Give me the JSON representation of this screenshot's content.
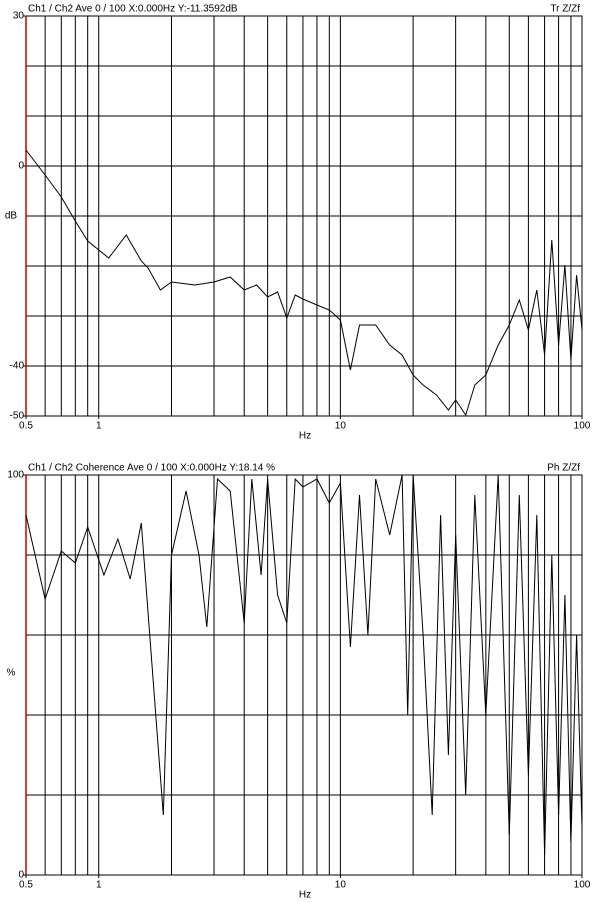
{
  "chart_data": [
    {
      "type": "line",
      "header_left": "Ch1 / Ch2  Ave 0 / 100  X:0.000Hz  Y:-11.3592dB",
      "header_right": "Tr Z/Zf",
      "x_label": "Hz",
      "y_label": "dB",
      "log_x": true,
      "color": "#000000",
      "axis_color": "#cc0000",
      "xlim": [
        0.5,
        100
      ],
      "xticks": [
        0.5,
        1,
        10,
        100
      ],
      "xgrid": [
        0.6,
        0.7,
        0.8,
        0.9,
        1,
        2,
        3,
        4,
        5,
        6,
        7,
        8,
        9,
        10,
        20,
        30,
        40,
        50,
        60,
        70,
        80,
        90
      ],
      "ylim": [
        -50,
        30
      ],
      "yticks": [
        30,
        0,
        -40,
        -50
      ],
      "ygrid": [
        20,
        10,
        0,
        -10,
        -20,
        -30,
        -40
      ],
      "x": [
        0.5,
        0.6,
        0.7,
        0.8,
        0.9,
        1.1,
        1.3,
        1.5,
        1.6,
        1.8,
        2,
        2.5,
        3,
        3.5,
        4,
        4.5,
        5,
        5.5,
        6,
        6.5,
        7,
        8,
        9,
        10,
        11,
        12,
        14,
        16,
        18,
        20,
        22,
        25,
        28,
        30,
        33,
        36,
        40,
        45,
        50,
        55,
        60,
        65,
        70,
        75,
        80,
        85,
        90,
        95,
        100
      ],
      "values": [
        3.2,
        -1.8,
        -6.2,
        -11,
        -15,
        -18.4,
        -13.8,
        -19,
        -20.4,
        -24.8,
        -23.2,
        -23.8,
        -23.2,
        -22.2,
        -24.8,
        -23.8,
        -26.2,
        -25.2,
        -30.4,
        -25.8,
        -26.6,
        -27.8,
        -28.8,
        -30.8,
        -40.8,
        -31.8,
        -31.8,
        -35.8,
        -37.8,
        -41.8,
        -43.8,
        -45.8,
        -48.8,
        -46.8,
        -49.8,
        -43.8,
        -41.8,
        -35.8,
        -31.8,
        -26.8,
        -32.8,
        -24.8,
        -37.8,
        -14.8,
        -35.8,
        -19.8,
        -38.8,
        -21.8,
        -32.8
      ]
    },
    {
      "type": "line",
      "header_left": "Ch1 / Ch2  Coherence Ave 0 / 100  X:0.000Hz  Y:18.14 %",
      "header_right": "Ph Z/Zf",
      "x_label": "Hz",
      "y_label": "%",
      "log_x": true,
      "color": "#000000",
      "axis_color": "#cc0000",
      "xlim": [
        0.5,
        100
      ],
      "xticks": [
        0.5,
        1,
        10,
        100
      ],
      "xgrid": [
        0.6,
        0.7,
        0.8,
        0.9,
        1,
        2,
        3,
        4,
        5,
        6,
        7,
        8,
        9,
        10,
        20,
        30,
        40,
        50,
        60,
        70,
        80,
        90
      ],
      "ylim": [
        0,
        100
      ],
      "yticks": [
        100,
        0
      ],
      "ygrid": [
        80,
        60,
        40,
        20
      ],
      "x": [
        0.5,
        0.6,
        0.7,
        0.8,
        0.9,
        1.05,
        1.2,
        1.35,
        1.5,
        1.85,
        2,
        2.3,
        2.6,
        2.8,
        3.1,
        3.5,
        4,
        4.3,
        4.7,
        5,
        5.5,
        6,
        6.5,
        7,
        8,
        9,
        10,
        11,
        12,
        13,
        14,
        16,
        18,
        19,
        20,
        22,
        24,
        26,
        28,
        30,
        33,
        36,
        40,
        45,
        50,
        55,
        60,
        65,
        70,
        75,
        80,
        85,
        90,
        95,
        100
      ],
      "values": [
        90,
        69,
        81,
        78,
        87,
        75,
        84,
        74,
        88,
        15,
        80,
        96,
        80,
        62,
        99,
        96,
        63,
        99,
        75,
        99,
        70,
        63,
        99,
        97,
        99,
        93,
        98,
        57,
        95,
        60,
        99,
        85,
        100,
        40,
        100,
        60,
        15,
        90,
        30,
        85,
        20,
        95,
        40,
        100,
        10,
        95,
        25,
        90,
        5,
        80,
        15,
        70,
        8,
        60,
        12
      ]
    }
  ]
}
